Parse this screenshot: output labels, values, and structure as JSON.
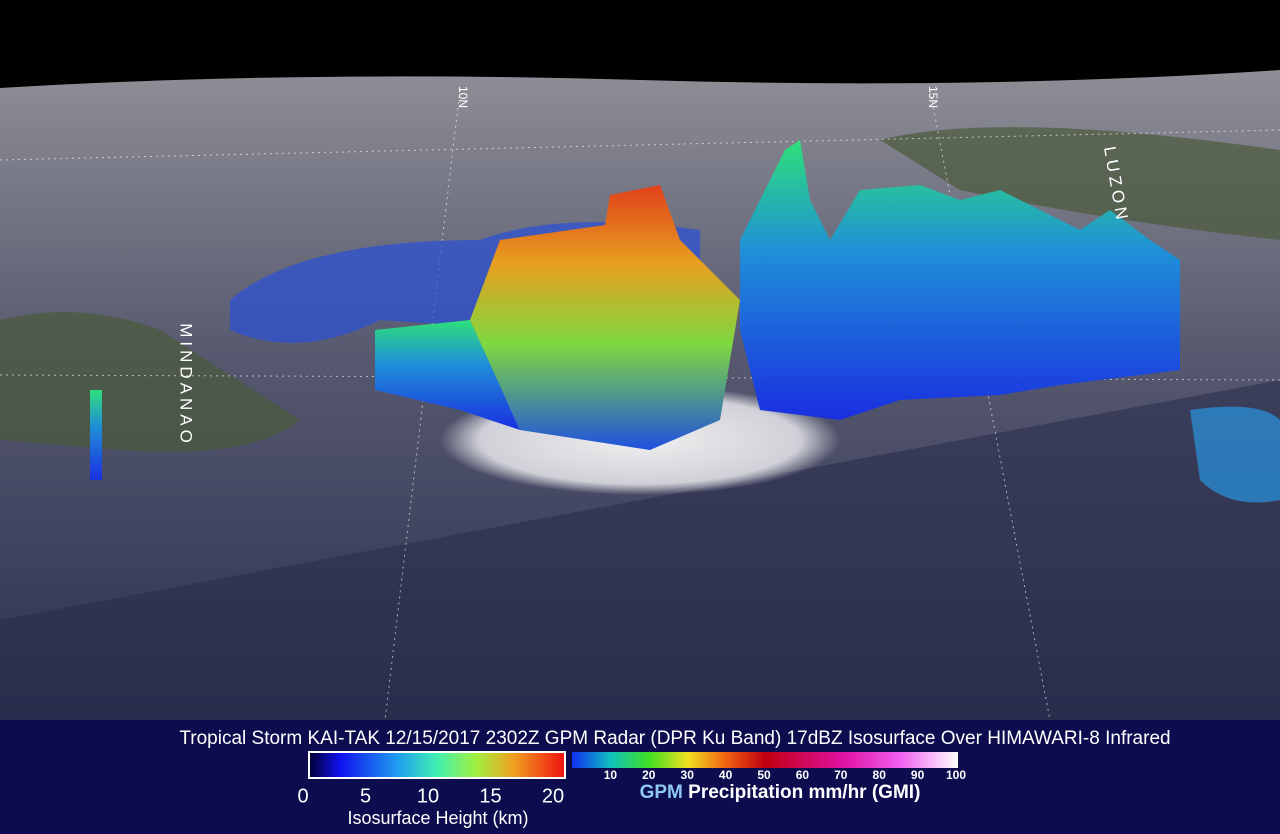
{
  "title": "Tropical Storm KAI-TAK 12/15/2017 2302Z GPM Radar (DPR Ku Band) 17dBZ Isosurface Over HIMAWARI-8 Infrared",
  "map_labels": {
    "mindanao": "MINDANAO",
    "luzon": "LUZON",
    "lat_a": "10N",
    "lat_b": "15N"
  },
  "height_legend": {
    "ticks": [
      0,
      5,
      10,
      15,
      20
    ],
    "label": "Isosurface Height (km)"
  },
  "precip_legend": {
    "ticks": [
      10,
      20,
      30,
      40,
      50,
      60,
      70,
      80,
      90,
      100
    ],
    "brand": "GPM",
    "label": "Precipitation mm/hr (GMI)"
  }
}
